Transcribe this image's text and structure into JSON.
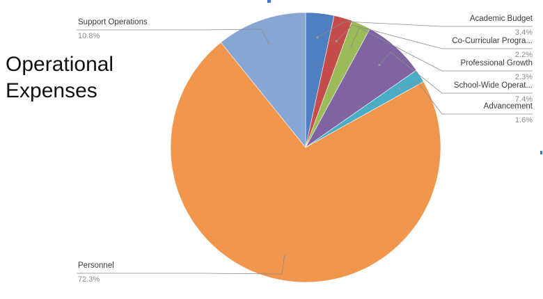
{
  "title_lines": [
    "Operational",
    "Expenses"
  ],
  "chart_data": {
    "type": "pie",
    "title": "Operational Expenses",
    "start_angle_deg": 0,
    "direction": "clockwise",
    "slices": [
      {
        "label": "Academic Budget",
        "display_label": "Academic Budget",
        "value": 3.4,
        "value_label": "3.4%",
        "color": "#4f7fc1"
      },
      {
        "label": "Co-Curricular Programs",
        "display_label": "Co-Curricular Progra...",
        "value": 2.2,
        "value_label": "2.2%",
        "color": "#c44d4b"
      },
      {
        "label": "Professional Growth",
        "display_label": "Professional Growth",
        "value": 2.3,
        "value_label": "2.3%",
        "color": "#9bbb59"
      },
      {
        "label": "School-Wide Operations",
        "display_label": "School-Wide Operat...",
        "value": 7.4,
        "value_label": "7.4%",
        "color": "#8064a2"
      },
      {
        "label": "Advancement",
        "display_label": "Advancement",
        "value": 1.6,
        "value_label": "1.6%",
        "color": "#4bacc6"
      },
      {
        "label": "Personnel",
        "display_label": "Personnel",
        "value": 72.3,
        "value_label": "72.3%",
        "color": "#f0974d"
      },
      {
        "label": "Support Operations",
        "display_label": "Support Operations",
        "value": 10.8,
        "value_label": "10.8%",
        "color": "#87a6d3"
      }
    ],
    "legend": "none",
    "label_style": "leader-lines"
  }
}
